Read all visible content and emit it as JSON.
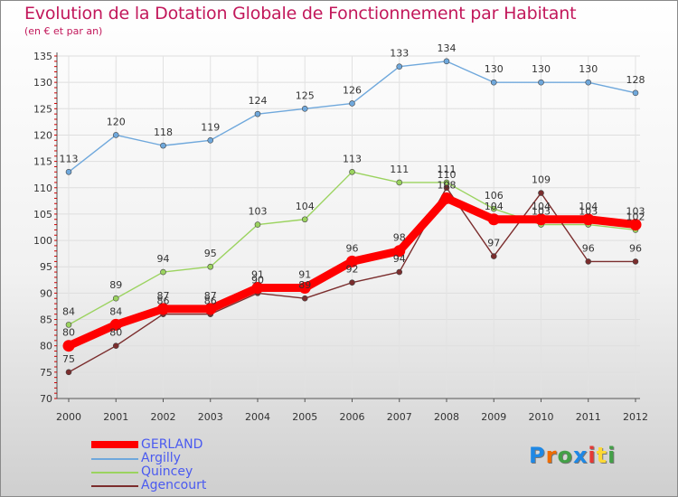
{
  "chart_data": {
    "type": "line",
    "title": "Evolution de la Dotation Globale de Fonctionnement par Habitant",
    "subtitle": "(en € et par an)",
    "xlabel": "",
    "ylabel": "",
    "ylim": [
      70,
      135
    ],
    "yticks": [
      70,
      75,
      80,
      85,
      90,
      95,
      100,
      105,
      110,
      115,
      120,
      125,
      130,
      135
    ],
    "categories": [
      "2000",
      "2001",
      "2002",
      "2003",
      "2004",
      "2005",
      "2006",
      "2007",
      "2008",
      "2009",
      "2010",
      "2011",
      "2012"
    ],
    "series": [
      {
        "name": "GERLAND",
        "color": "#ff0000",
        "values": [
          80,
          84,
          87,
          87,
          91,
          91,
          96,
          98,
          108,
          104,
          104,
          104,
          103
        ]
      },
      {
        "name": "Argilly",
        "color": "#6fa8dc",
        "values": [
          113,
          120,
          118,
          119,
          124,
          125,
          126,
          133,
          134,
          130,
          130,
          130,
          128
        ]
      },
      {
        "name": "Quincey",
        "color": "#9bd35f",
        "values": [
          84,
          89,
          94,
          95,
          103,
          104,
          113,
          111,
          111,
          106,
          103,
          103,
          102
        ]
      },
      {
        "name": "Agencourt",
        "color": "#7b2d2d",
        "values": [
          75,
          80,
          86,
          86,
          90,
          89,
          92,
          94,
          110,
          97,
          109,
          96,
          96
        ]
      }
    ]
  },
  "logo": {
    "letters": [
      "P",
      "r",
      "o",
      "x",
      "i",
      "t",
      "i"
    ],
    "colors": [
      "#1e88e5",
      "#ef6c00",
      "#43a047",
      "#1e88e5",
      "#e53935",
      "#fdd835",
      "#43a047"
    ]
  }
}
